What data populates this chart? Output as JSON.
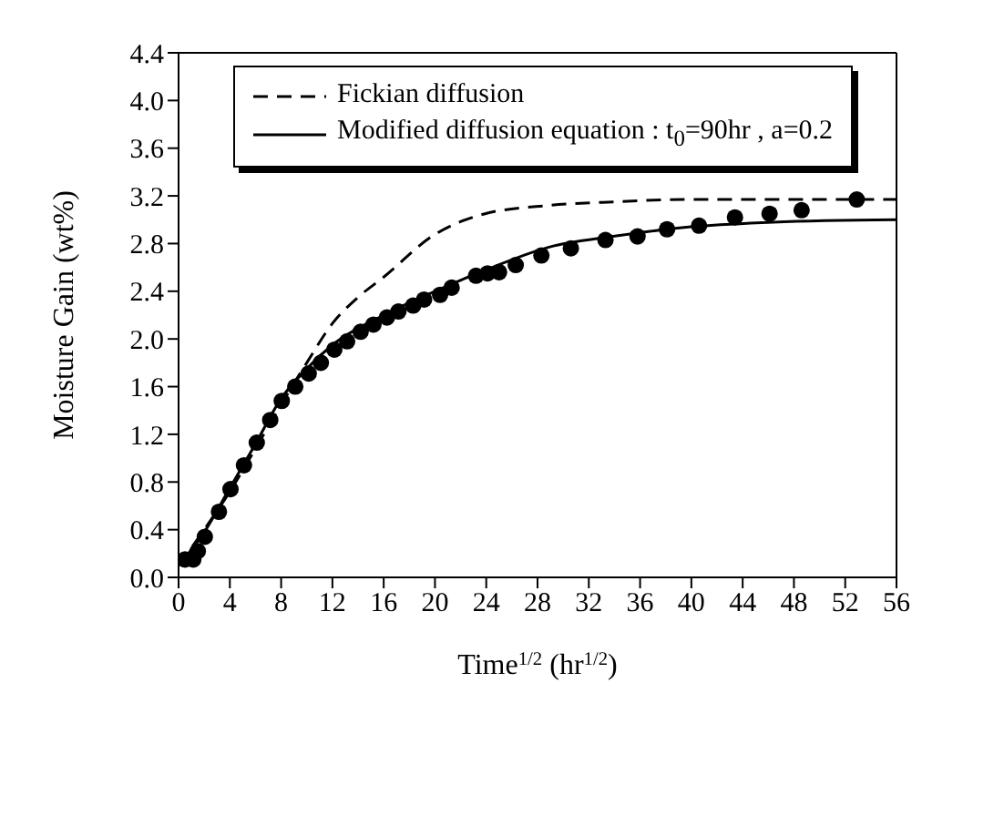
{
  "chart_data": {
    "type": "scatter",
    "xlabel": "Time$^{1/2}$  (hr$^{1/2}$)",
    "ylabel": "Moisture Gain (wt%)",
    "xlim": [
      0,
      56
    ],
    "xticks": [
      0,
      4,
      8,
      12,
      16,
      20,
      24,
      28,
      32,
      36,
      40,
      44,
      48,
      52,
      56
    ],
    "ylim": [
      0,
      4.4
    ],
    "yticks": [
      {
        "value": 0,
        "label": "0.0"
      },
      0.4,
      0.8,
      1.2,
      1.6,
      {
        "value": 2,
        "label": "2.0"
      },
      2.4,
      2.8,
      3.2,
      3.6,
      {
        "value": 4,
        "label": "4.0"
      },
      4.4
    ],
    "legend": "top",
    "grid": false,
    "series": [
      {
        "color": "#000000",
        "marker": "circle",
        "x": [
          0.5,
          1.15,
          1.5,
          2.05,
          3.15,
          4.05,
          5.1,
          6.1,
          7.15,
          8.05,
          9.1,
          10.15,
          11.1,
          12.15,
          13.15,
          14.2,
          15.2,
          16.25,
          17.15,
          18.3,
          19.15,
          20.4,
          21.3,
          23.2,
          24.1,
          25.0,
          26.3,
          28.3,
          30.6,
          33.3,
          35.8,
          38.1,
          40.6,
          43.4,
          46.1,
          48.6,
          52.9
        ],
        "values": [
          0.15,
          0.15,
          0.22,
          0.34,
          0.55,
          0.74,
          0.94,
          1.13,
          1.32,
          1.48,
          1.6,
          1.71,
          1.8,
          1.91,
          1.98,
          2.06,
          2.12,
          2.18,
          2.23,
          2.28,
          2.33,
          2.37,
          2.43,
          2.53,
          2.55,
          2.56,
          2.62,
          2.7,
          2.76,
          2.83,
          2.86,
          2.92,
          2.95,
          3.02,
          3.05,
          3.08,
          3.17
        ]
      },
      {
        "type": "line",
        "name": "Fickian diffusion",
        "color": "#000000",
        "line_style": "dashed",
        "marker": "none",
        "x": [
          0,
          2,
          4,
          6,
          8,
          10,
          12,
          14,
          15.9,
          19.9,
          23.9,
          28.9,
          33.9,
          40,
          56
        ],
        "values": [
          0.1,
          0.4,
          0.72,
          1.08,
          1.45,
          1.8,
          2.13,
          2.35,
          2.51,
          2.87,
          3.05,
          3.12,
          3.15,
          3.17,
          3.17
        ]
      },
      {
        "type": "line",
        "name": "Modified diffusion equation : t$_{0}$=90hr , a=0.2",
        "color": "#000000",
        "line_style": "solid",
        "marker": "none",
        "x": [
          0,
          2,
          4,
          6,
          8,
          10,
          12,
          16,
          20,
          24,
          28.9,
          33.9,
          38.9,
          46.4,
          56
        ],
        "values": [
          0.1,
          0.38,
          0.75,
          1.12,
          1.5,
          1.75,
          1.95,
          2.2,
          2.4,
          2.58,
          2.77,
          2.86,
          2.93,
          2.98,
          3.0
        ]
      }
    ]
  }
}
